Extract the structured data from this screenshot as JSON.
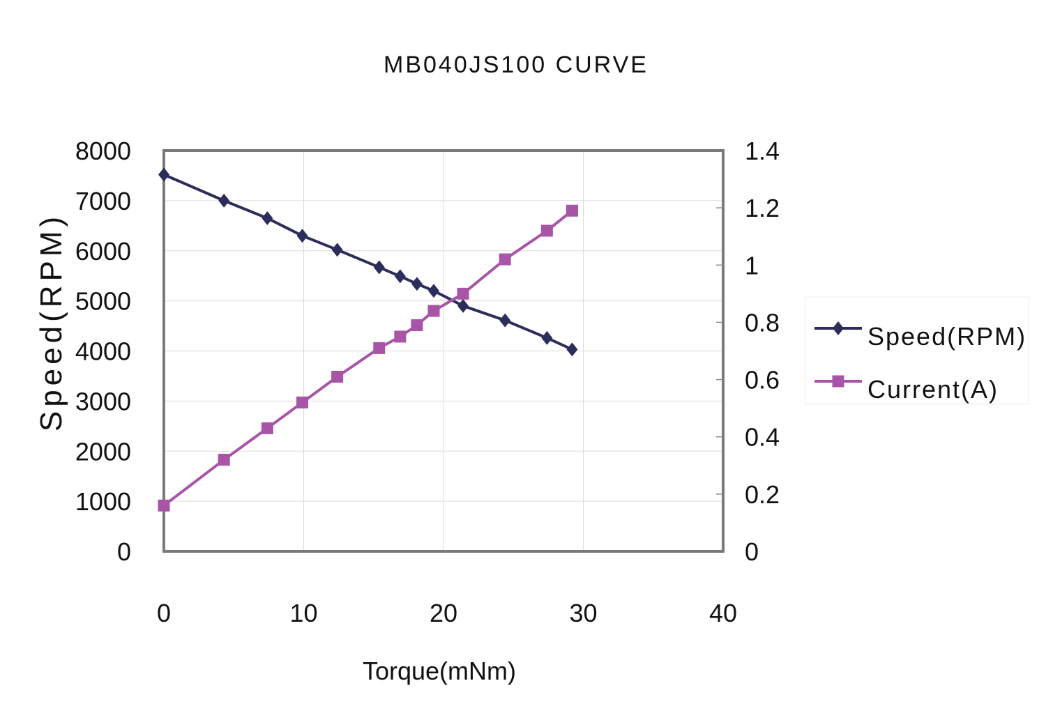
{
  "chart_data": {
    "type": "line",
    "title": "MB040JS100 CURVE",
    "xlabel": "Torque(mNm)",
    "ylabel": "Speed(RPM)",
    "y2label": "",
    "xlim": [
      0,
      40
    ],
    "ylim": [
      0,
      8000
    ],
    "y2lim": [
      0,
      1.4
    ],
    "xticks": [
      "0",
      "10",
      "20",
      "30",
      "40"
    ],
    "yticks": [
      "0",
      "1000",
      "2000",
      "3000",
      "4000",
      "5000",
      "6000",
      "7000",
      "8000"
    ],
    "y2ticks": [
      "0",
      "0.2",
      "0.4",
      "0.6",
      "0.8",
      "1",
      "1.2",
      "1.4"
    ],
    "grid": true,
    "legend_position": "right",
    "series": [
      {
        "name": "Speed(RPM)",
        "axis": "left",
        "marker": "diamond",
        "color": "#2d2d5c",
        "x": [
          0,
          4.3,
          7.4,
          9.9,
          12.4,
          15.4,
          16.9,
          18.1,
          19.3,
          21.4,
          24.4,
          27.4,
          29.2
        ],
        "y": [
          7520,
          7000,
          6650,
          6300,
          6020,
          5670,
          5490,
          5340,
          5200,
          4900,
          4610,
          4260,
          4030
        ]
      },
      {
        "name": "Current(A)",
        "axis": "right",
        "marker": "square",
        "color": "#a855a8",
        "x": [
          0,
          4.3,
          7.4,
          9.9,
          12.4,
          15.4,
          16.9,
          18.1,
          19.3,
          21.4,
          24.4,
          27.4,
          29.2
        ],
        "y": [
          0.16,
          0.32,
          0.43,
          0.52,
          0.61,
          0.71,
          0.75,
          0.79,
          0.84,
          0.9,
          1.02,
          1.12,
          1.19
        ]
      }
    ]
  }
}
